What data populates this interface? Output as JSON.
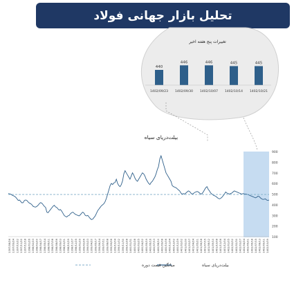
{
  "header": {
    "title": "تحلیل بازار جهانی فولاد"
  },
  "chart_data": [
    {
      "type": "bar",
      "title": "تغییرات پنج هفته اخیر",
      "categories": [
        "1402/09/23",
        "1402/09/30",
        "1402/10/07",
        "1402/10/14",
        "1402/10/21"
      ],
      "values": [
        440,
        446,
        446,
        445,
        445
      ],
      "ylim": [
        420,
        450
      ],
      "grid": false,
      "color": "#2e5f8a"
    },
    {
      "type": "line",
      "title": "بیلت‌دریای سیاه",
      "ylim": [
        100,
        900
      ],
      "yticks": [
        "100",
        "200",
        "300",
        "400",
        "500",
        "600",
        "700",
        "800",
        "900"
      ],
      "xtick_labels": [
        "1397/08/26",
        "1397/09/24",
        "1397/10/22",
        "1397/11/20",
        "1397/12/18",
        "1398/01/26",
        "1398/02/23",
        "1398/03/20",
        "1398/04/17",
        "1398/05/14",
        "1398/06/11",
        "1398/07/08",
        "1398/08/06",
        "1398/09/03",
        "1398/10/01",
        "1398/10/29",
        "1398/11/27",
        "1398/12/25",
        "1399/01/29",
        "1399/02/26",
        "1399/03/23",
        "1399/04/20",
        "1399/05/17",
        "1399/06/14",
        "1399/07/11",
        "1399/08/08",
        "1399/09/06",
        "1399/10/04",
        "1399/11/02",
        "1399/11/30",
        "1399/12/28",
        "1400/01/31",
        "1400/02/28",
        "1400/03/25",
        "1400/04/22",
        "1400/05/19",
        "1400/06/16",
        "1400/07/13",
        "1400/08/10",
        "1400/09/08",
        "1400/10/06",
        "1400/11/04",
        "1400/12/02",
        "1400/12/29",
        "1401/02/02",
        "1401/02/30",
        "1401/03/27",
        "1401/04/24",
        "1401/05/21",
        "1401/06/18",
        "1401/07/15",
        "1401/08/12",
        "1401/09/10",
        "1401/10/08",
        "1401/11/06",
        "1401/12/04",
        "1402/01/05",
        "1402/02/02",
        "1402/02/30",
        "1402/03/27",
        "1402/04/24",
        "1402/05/21",
        "1402/06/18",
        "1402/07/15",
        "1402/08/13",
        "1402/09/11",
        "1402/10/09"
      ],
      "series": [
        {
          "name": "بیلت‌دریای سیاه",
          "color": "#2e5f8a",
          "values": [
            505,
            502,
            500,
            490,
            485,
            480,
            470,
            455,
            440,
            445,
            430,
            418,
            420,
            440,
            445,
            440,
            425,
            415,
            410,
            400,
            385,
            380,
            378,
            385,
            395,
            410,
            420,
            415,
            400,
            385,
            375,
            330,
            325,
            340,
            355,
            370,
            385,
            395,
            380,
            375,
            360,
            350,
            355,
            340,
            320,
            300,
            290,
            285,
            295,
            300,
            315,
            325,
            330,
            320,
            310,
            305,
            300,
            295,
            305,
            320,
            330,
            320,
            300,
            295,
            300,
            285,
            270,
            260,
            265,
            280,
            295,
            320,
            345,
            360,
            375,
            390,
            400,
            410,
            430,
            460,
            500,
            540,
            580,
            600,
            590,
            605,
            610,
            640,
            600,
            580,
            570,
            590,
            625,
            690,
            720,
            700,
            680,
            660,
            640,
            670,
            700,
            680,
            650,
            630,
            620,
            640,
            660,
            680,
            700,
            690,
            670,
            640,
            620,
            600,
            590,
            610,
            620,
            640,
            660,
            690,
            730,
            760,
            830,
            860,
            820,
            780,
            740,
            700,
            680,
            660,
            640,
            620,
            580,
            570,
            565,
            560,
            550,
            540,
            530,
            510,
            500,
            505,
            500,
            510,
            520,
            530,
            525,
            510,
            500,
            505,
            515,
            520,
            525,
            520,
            510,
            500,
            505,
            520,
            540,
            560,
            570,
            545,
            530,
            510,
            500,
            490,
            485,
            480,
            470,
            460,
            455,
            460,
            470,
            485,
            500,
            520,
            510,
            505,
            500,
            505,
            510,
            520,
            530,
            525,
            520,
            515,
            510,
            505,
            500,
            505,
            502,
            500,
            498,
            495,
            490,
            485,
            480,
            475,
            470,
            465,
            470,
            480,
            478,
            465,
            455,
            450,
            452,
            455,
            445,
            440,
            445
          ]
        },
        {
          "name": "میانگین قیمت دوره",
          "color": "#7faec9",
          "dashed": true,
          "values": [
            496,
            496
          ]
        }
      ],
      "highlight": "last-five-weeks"
    }
  ]
}
